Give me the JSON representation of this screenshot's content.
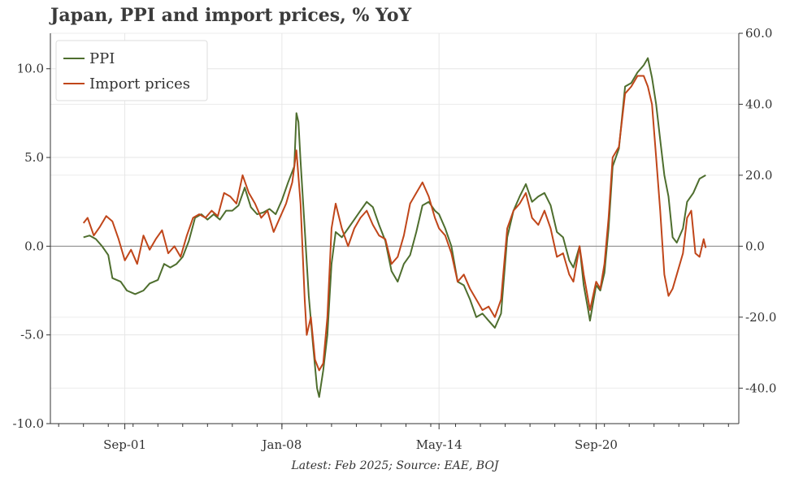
{
  "title": "Japan, PPI and import prices, % YoY",
  "source_note": "Latest: Feb 2025; Source: EAE, BOJ",
  "chart_data": {
    "type": "line",
    "x_range": [
      "1998-09",
      "2026-06"
    ],
    "x_ticks": [
      {
        "date": "2001-09",
        "label": "Sep-01"
      },
      {
        "date": "2008-01",
        "label": "Jan-08"
      },
      {
        "date": "2014-05",
        "label": "May-14"
      },
      {
        "date": "2020-09",
        "label": "Sep-20"
      }
    ],
    "y_left": {
      "range": [
        -10,
        12
      ],
      "ticks": [
        -10,
        -5,
        0,
        5,
        10
      ],
      "tick_labels": [
        "-10.0",
        "-5.0",
        "0.0",
        "5.0",
        "10.0"
      ]
    },
    "y_right": {
      "range": [
        -50,
        60
      ],
      "ticks": [
        -40,
        -20,
        0,
        20,
        40,
        60
      ],
      "tick_labels": [
        "-40.0",
        "-20.0",
        "0.0",
        "20.0",
        "40.0",
        "60.0"
      ]
    },
    "grid": true,
    "legend_position": "top-left",
    "series": [
      {
        "name": "PPI",
        "axis": "left",
        "color": "#4e6e2e",
        "points": [
          [
            "2000-01",
            0.5
          ],
          [
            "2000-04",
            0.6
          ],
          [
            "2000-07",
            0.4
          ],
          [
            "2000-10",
            0.0
          ],
          [
            "2001-01",
            -0.5
          ],
          [
            "2001-03",
            -1.8
          ],
          [
            "2001-07",
            -2.0
          ],
          [
            "2001-10",
            -2.5
          ],
          [
            "2002-02",
            -2.7
          ],
          [
            "2002-06",
            -2.5
          ],
          [
            "2002-09",
            -2.1
          ],
          [
            "2003-01",
            -1.9
          ],
          [
            "2003-04",
            -1.0
          ],
          [
            "2003-07",
            -1.2
          ],
          [
            "2003-10",
            -1.0
          ],
          [
            "2004-01",
            -0.6
          ],
          [
            "2004-04",
            0.3
          ],
          [
            "2004-07",
            1.6
          ],
          [
            "2004-10",
            1.8
          ],
          [
            "2005-01",
            1.5
          ],
          [
            "2005-04",
            1.8
          ],
          [
            "2005-07",
            1.5
          ],
          [
            "2005-10",
            2.0
          ],
          [
            "2006-01",
            2.0
          ],
          [
            "2006-04",
            2.3
          ],
          [
            "2006-07",
            3.3
          ],
          [
            "2006-10",
            2.2
          ],
          [
            "2007-01",
            1.8
          ],
          [
            "2007-04",
            1.9
          ],
          [
            "2007-07",
            2.1
          ],
          [
            "2007-10",
            1.8
          ],
          [
            "2008-01",
            2.6
          ],
          [
            "2008-04",
            3.6
          ],
          [
            "2008-07",
            4.5
          ],
          [
            "2008-08",
            7.5
          ],
          [
            "2008-09",
            7.0
          ],
          [
            "2008-10",
            4.8
          ],
          [
            "2008-12",
            1.0
          ],
          [
            "2009-02",
            -2.8
          ],
          [
            "2009-04",
            -5.5
          ],
          [
            "2009-06",
            -8.0
          ],
          [
            "2009-07",
            -8.5
          ],
          [
            "2009-09",
            -7.0
          ],
          [
            "2009-11",
            -5.0
          ],
          [
            "2010-01",
            -1.0
          ],
          [
            "2010-03",
            0.8
          ],
          [
            "2010-06",
            0.5
          ],
          [
            "2010-09",
            1.0
          ],
          [
            "2010-12",
            1.5
          ],
          [
            "2011-03",
            2.0
          ],
          [
            "2011-06",
            2.5
          ],
          [
            "2011-09",
            2.2
          ],
          [
            "2011-12",
            1.2
          ],
          [
            "2012-03",
            0.3
          ],
          [
            "2012-06",
            -1.4
          ],
          [
            "2012-09",
            -2.0
          ],
          [
            "2012-12",
            -1.0
          ],
          [
            "2013-03",
            -0.5
          ],
          [
            "2013-06",
            0.8
          ],
          [
            "2013-09",
            2.3
          ],
          [
            "2013-12",
            2.5
          ],
          [
            "2014-03",
            2.0
          ],
          [
            "2014-05",
            1.8
          ],
          [
            "2014-08",
            1.0
          ],
          [
            "2014-11",
            0.0
          ],
          [
            "2015-02",
            -2.0
          ],
          [
            "2015-05",
            -2.2
          ],
          [
            "2015-08",
            -3.0
          ],
          [
            "2015-11",
            -4.0
          ],
          [
            "2016-02",
            -3.8
          ],
          [
            "2016-05",
            -4.2
          ],
          [
            "2016-08",
            -4.6
          ],
          [
            "2016-11",
            -3.8
          ],
          [
            "2017-02",
            0.5
          ],
          [
            "2017-05",
            2.0
          ],
          [
            "2017-08",
            2.8
          ],
          [
            "2017-11",
            3.5
          ],
          [
            "2018-02",
            2.5
          ],
          [
            "2018-05",
            2.8
          ],
          [
            "2018-08",
            3.0
          ],
          [
            "2018-11",
            2.3
          ],
          [
            "2019-02",
            0.8
          ],
          [
            "2019-05",
            0.5
          ],
          [
            "2019-08",
            -0.8
          ],
          [
            "2019-10",
            -1.2
          ],
          [
            "2020-01",
            0.0
          ],
          [
            "2020-03",
            -2.2
          ],
          [
            "2020-05",
            -3.5
          ],
          [
            "2020-06",
            -4.2
          ],
          [
            "2020-09",
            -2.2
          ],
          [
            "2020-11",
            -2.5
          ],
          [
            "2021-01",
            -1.5
          ],
          [
            "2021-03",
            1.0
          ],
          [
            "2021-05",
            4.5
          ],
          [
            "2021-08",
            5.5
          ],
          [
            "2021-11",
            9.0
          ],
          [
            "2022-02",
            9.2
          ],
          [
            "2022-05",
            9.8
          ],
          [
            "2022-08",
            10.2
          ],
          [
            "2022-10",
            10.6
          ],
          [
            "2022-12",
            9.5
          ],
          [
            "2023-02",
            8.0
          ],
          [
            "2023-04",
            6.0
          ],
          [
            "2023-06",
            4.0
          ],
          [
            "2023-08",
            2.8
          ],
          [
            "2023-10",
            0.5
          ],
          [
            "2023-12",
            0.2
          ],
          [
            "2024-03",
            1.0
          ],
          [
            "2024-05",
            2.5
          ],
          [
            "2024-08",
            3.0
          ],
          [
            "2024-11",
            3.8
          ],
          [
            "2025-02",
            4.0
          ]
        ]
      },
      {
        "name": "Import prices",
        "axis": "right",
        "color": "#c0461a",
        "points": [
          [
            "2000-01",
            6.5
          ],
          [
            "2000-03",
            8.0
          ],
          [
            "2000-06",
            3.0
          ],
          [
            "2000-09",
            5.5
          ],
          [
            "2000-12",
            8.5
          ],
          [
            "2001-03",
            7.0
          ],
          [
            "2001-06",
            2.0
          ],
          [
            "2001-09",
            -4.0
          ],
          [
            "2001-12",
            -1.0
          ],
          [
            "2002-03",
            -5.0
          ],
          [
            "2002-06",
            3.0
          ],
          [
            "2002-09",
            -1.0
          ],
          [
            "2002-12",
            2.0
          ],
          [
            "2003-03",
            4.5
          ],
          [
            "2003-06",
            -2.0
          ],
          [
            "2003-09",
            0.0
          ],
          [
            "2003-12",
            -3.0
          ],
          [
            "2004-03",
            3.0
          ],
          [
            "2004-06",
            8.0
          ],
          [
            "2004-09",
            9.0
          ],
          [
            "2004-12",
            8.0
          ],
          [
            "2005-03",
            10.0
          ],
          [
            "2005-06",
            8.5
          ],
          [
            "2005-09",
            15.0
          ],
          [
            "2005-12",
            14.0
          ],
          [
            "2006-03",
            12.0
          ],
          [
            "2006-06",
            20.0
          ],
          [
            "2006-09",
            15.0
          ],
          [
            "2006-12",
            12.0
          ],
          [
            "2007-03",
            8.0
          ],
          [
            "2007-06",
            10.0
          ],
          [
            "2007-09",
            4.0
          ],
          [
            "2007-12",
            8.0
          ],
          [
            "2008-03",
            12.0
          ],
          [
            "2008-06",
            18.0
          ],
          [
            "2008-08",
            27.0
          ],
          [
            "2008-10",
            12.0
          ],
          [
            "2008-12",
            -15.0
          ],
          [
            "2009-01",
            -25.0
          ],
          [
            "2009-03",
            -20.0
          ],
          [
            "2009-05",
            -32.0
          ],
          [
            "2009-07",
            -35.0
          ],
          [
            "2009-09",
            -33.0
          ],
          [
            "2009-11",
            -20.0
          ],
          [
            "2010-01",
            5.0
          ],
          [
            "2010-03",
            12.0
          ],
          [
            "2010-06",
            5.0
          ],
          [
            "2010-09",
            0.0
          ],
          [
            "2010-12",
            5.0
          ],
          [
            "2011-03",
            8.0
          ],
          [
            "2011-06",
            10.0
          ],
          [
            "2011-09",
            6.0
          ],
          [
            "2011-12",
            3.0
          ],
          [
            "2012-03",
            2.0
          ],
          [
            "2012-06",
            -5.0
          ],
          [
            "2012-09",
            -3.0
          ],
          [
            "2012-12",
            3.0
          ],
          [
            "2013-03",
            12.0
          ],
          [
            "2013-06",
            15.0
          ],
          [
            "2013-09",
            18.0
          ],
          [
            "2013-12",
            14.0
          ],
          [
            "2014-03",
            8.0
          ],
          [
            "2014-05",
            5.0
          ],
          [
            "2014-08",
            3.0
          ],
          [
            "2014-11",
            -2.0
          ],
          [
            "2015-02",
            -10.0
          ],
          [
            "2015-05",
            -8.0
          ],
          [
            "2015-08",
            -12.0
          ],
          [
            "2015-11",
            -15.0
          ],
          [
            "2016-02",
            -18.0
          ],
          [
            "2016-05",
            -17.0
          ],
          [
            "2016-08",
            -20.0
          ],
          [
            "2016-11",
            -15.0
          ],
          [
            "2017-02",
            5.0
          ],
          [
            "2017-05",
            10.0
          ],
          [
            "2017-08",
            12.0
          ],
          [
            "2017-11",
            15.0
          ],
          [
            "2018-02",
            8.0
          ],
          [
            "2018-05",
            6.0
          ],
          [
            "2018-08",
            10.0
          ],
          [
            "2018-11",
            5.0
          ],
          [
            "2019-02",
            -3.0
          ],
          [
            "2019-05",
            -2.0
          ],
          [
            "2019-08",
            -8.0
          ],
          [
            "2019-10",
            -10.0
          ],
          [
            "2020-01",
            0.0
          ],
          [
            "2020-03",
            -8.0
          ],
          [
            "2020-06",
            -18.0
          ],
          [
            "2020-09",
            -10.0
          ],
          [
            "2020-11",
            -12.0
          ],
          [
            "2021-01",
            -5.0
          ],
          [
            "2021-03",
            8.0
          ],
          [
            "2021-05",
            25.0
          ],
          [
            "2021-08",
            28.0
          ],
          [
            "2021-11",
            43.0
          ],
          [
            "2022-02",
            45.0
          ],
          [
            "2022-05",
            48.0
          ],
          [
            "2022-08",
            48.0
          ],
          [
            "2022-10",
            45.0
          ],
          [
            "2022-12",
            40.0
          ],
          [
            "2023-02",
            25.0
          ],
          [
            "2023-04",
            10.0
          ],
          [
            "2023-06",
            -8.0
          ],
          [
            "2023-08",
            -14.0
          ],
          [
            "2023-10",
            -12.0
          ],
          [
            "2023-12",
            -8.0
          ],
          [
            "2024-03",
            -2.0
          ],
          [
            "2024-05",
            8.0
          ],
          [
            "2024-07",
            10.0
          ],
          [
            "2024-09",
            -2.0
          ],
          [
            "2024-11",
            -3.0
          ],
          [
            "2025-01",
            2.0
          ],
          [
            "2025-02",
            -0.5
          ]
        ]
      }
    ]
  }
}
